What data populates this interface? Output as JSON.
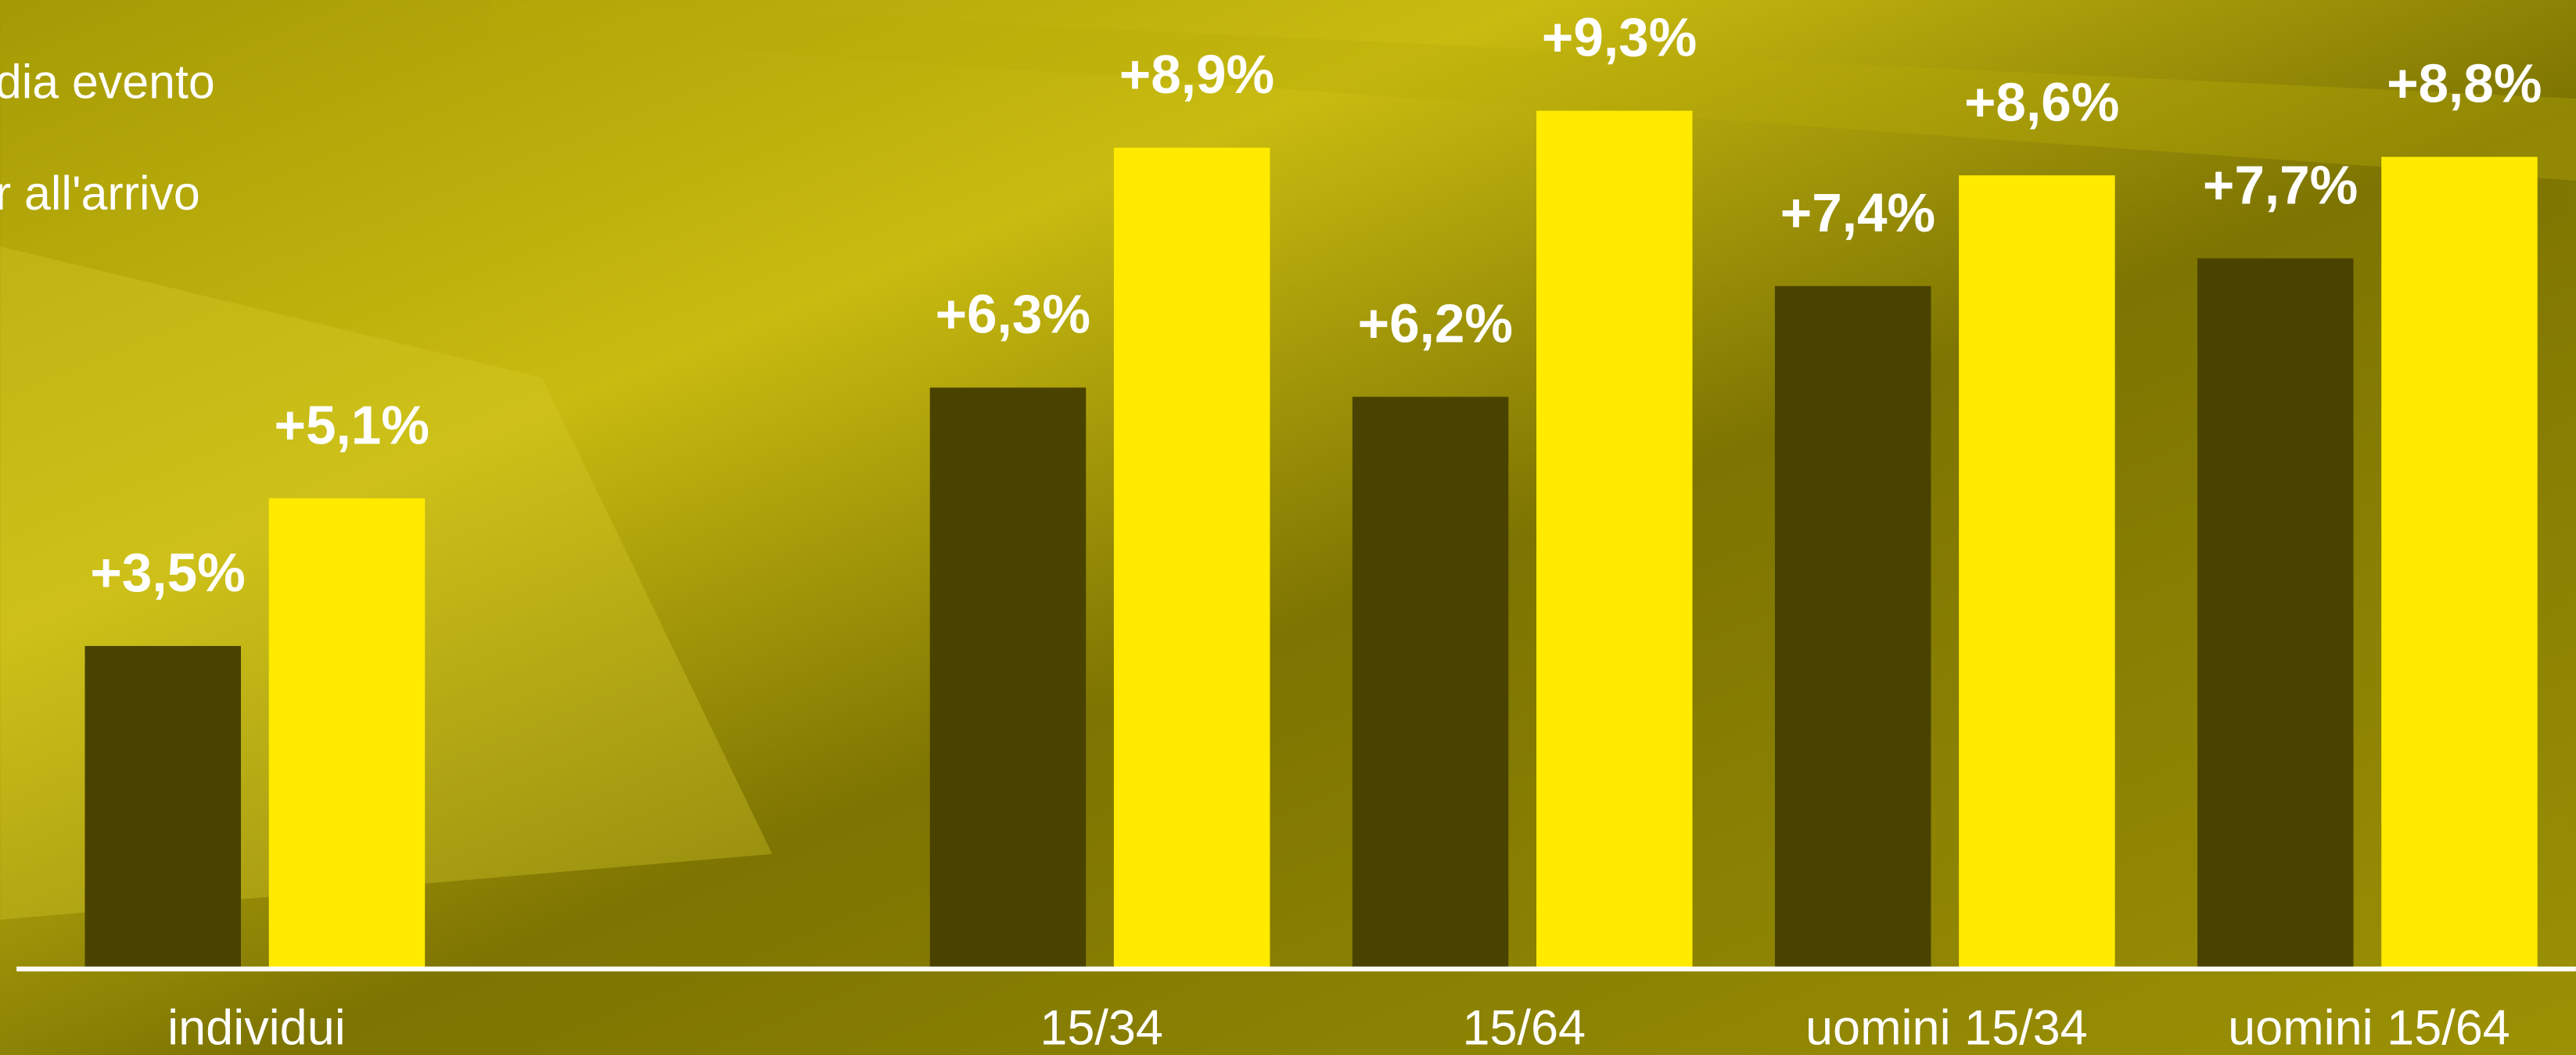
{
  "chart_data": {
    "type": "bar",
    "legend_labels_partial": true,
    "categories": [
      "individui",
      null,
      "15/34",
      "15/64",
      "uomini 15/34",
      "uomini 15/64"
    ],
    "series": [
      {
        "name": "dia evento",
        "color": "#4a4300",
        "values": [
          3.5,
          null,
          6.3,
          6.2,
          7.4,
          7.7
        ],
        "value_labels": [
          "+3,5%",
          null,
          "+6,3%",
          "+6,2%",
          "+7,4%",
          "+7,7%"
        ]
      },
      {
        "name": "r all'arrivo",
        "color": "#ffea00",
        "values": [
          5.1,
          null,
          8.9,
          9.3,
          8.6,
          8.8
        ],
        "value_labels": [
          "+5,1%",
          null,
          "+8,9%",
          "+9,3%",
          "+8,6%",
          "+8,8%"
        ]
      }
    ],
    "ylim": [
      0,
      10.5
    ]
  }
}
